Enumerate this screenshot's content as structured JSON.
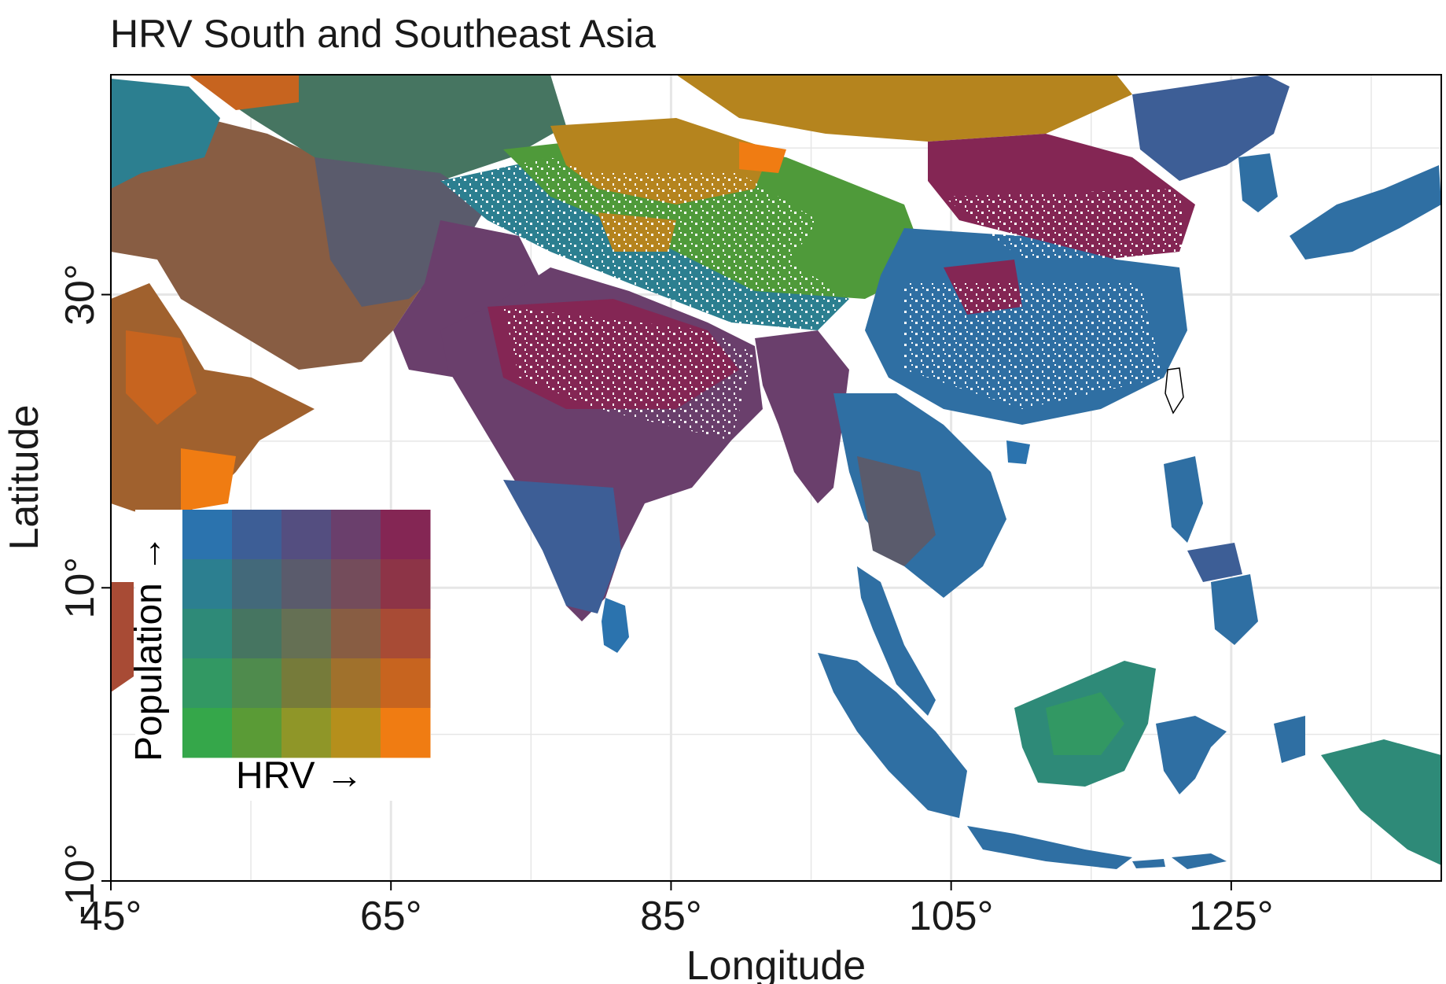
{
  "title": "HRV South and Southeast Asia",
  "x_axis": {
    "label": "Longitude",
    "ticks": [
      "45°",
      "65°",
      "85°",
      "105°",
      "125°"
    ],
    "tick_values": [
      45,
      65,
      85,
      105,
      125
    ],
    "range": [
      45,
      140
    ]
  },
  "y_axis": {
    "label": "Latitude",
    "ticks": [
      "30°",
      "10°",
      "-10°"
    ],
    "tick_values": [
      30,
      10,
      -10
    ],
    "range": [
      -10,
      45
    ]
  },
  "legend": {
    "type": "bivariate-5x5",
    "x_label": "HRV →",
    "y_label": "Population →",
    "colors": [
      [
        "#2b73ae",
        "#3d5e96",
        "#544e80",
        "#6a3f6c",
        "#842654"
      ],
      [
        "#2c7f90",
        "#43697a",
        "#5a5b6c",
        "#744c5b",
        "#8d3447"
      ],
      [
        "#2e8a78",
        "#467561",
        "#657054",
        "#885d43",
        "#a84b35"
      ],
      [
        "#329863",
        "#4f8b4d",
        "#767b3a",
        "#a0712c",
        "#c7641f"
      ],
      [
        "#35a74a",
        "#5a9b36",
        "#8f9628",
        "#b58f1c",
        "#f07c12"
      ]
    ]
  },
  "map_colors": {
    "magenta": "#842654",
    "purple": "#6a3f6c",
    "blue": "#2f6fa3",
    "teal": "#2c7f90",
    "green": "#4f9a3a",
    "ochre": "#b5841e",
    "orange": "#f07c12",
    "brown": "#a0612e",
    "border": "#000000",
    "grid": "#e6e6e6"
  }
}
